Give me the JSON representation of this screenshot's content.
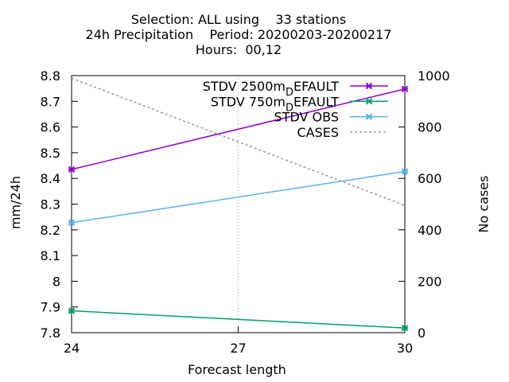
{
  "title_lines": [
    "Selection: ALL using    33 stations",
    "24h Precipitation    Period: 20200203-20200217",
    "Hours:  00,12"
  ],
  "chart_data": {
    "type": "line",
    "xlabel": "Forecast length",
    "ylabel": "mm/24h",
    "y2label": "No cases",
    "xlim": [
      24,
      30
    ],
    "ylim": [
      7.8,
      8.8
    ],
    "y2lim": [
      0,
      1000
    ],
    "x_ticks": [
      24,
      27,
      30
    ],
    "y_ticks": [
      7.8,
      7.9,
      8,
      8.1,
      8.2,
      8.3,
      8.4,
      8.5,
      8.6,
      8.7,
      8.8
    ],
    "y2_ticks": [
      0,
      200,
      400,
      600,
      800,
      1000
    ],
    "grid": true,
    "legend_position": "top-right",
    "x": [
      24,
      30
    ],
    "series": [
      {
        "name": "STDV 2500m_DEFAULT",
        "legend_main": "STDV 2500m",
        "legend_sub": "D",
        "legend_tail": "EFAULT",
        "axis": "y",
        "values": [
          8.435,
          8.748
        ],
        "color": "#9400d3",
        "style": "solid",
        "marker": "x"
      },
      {
        "name": "STDV 750m_DEFAULT",
        "legend_main": "STDV 750m",
        "legend_sub": "D",
        "legend_tail": "EFAULT",
        "axis": "y",
        "values": [
          7.885,
          7.818
        ],
        "color": "#009e73",
        "style": "solid",
        "marker": "x"
      },
      {
        "name": "STDV OBS",
        "legend_main": "STDV OBS",
        "legend_sub": "",
        "legend_tail": "",
        "axis": "y",
        "values": [
          8.228,
          8.427
        ],
        "color": "#56b4e9",
        "style": "solid",
        "marker": "x"
      },
      {
        "name": "CASES",
        "legend_main": "CASES",
        "legend_sub": "",
        "legend_tail": "",
        "axis": "y2",
        "values": [
          990,
          495
        ],
        "color": "#999999",
        "style": "dashed",
        "marker": "none"
      }
    ]
  }
}
